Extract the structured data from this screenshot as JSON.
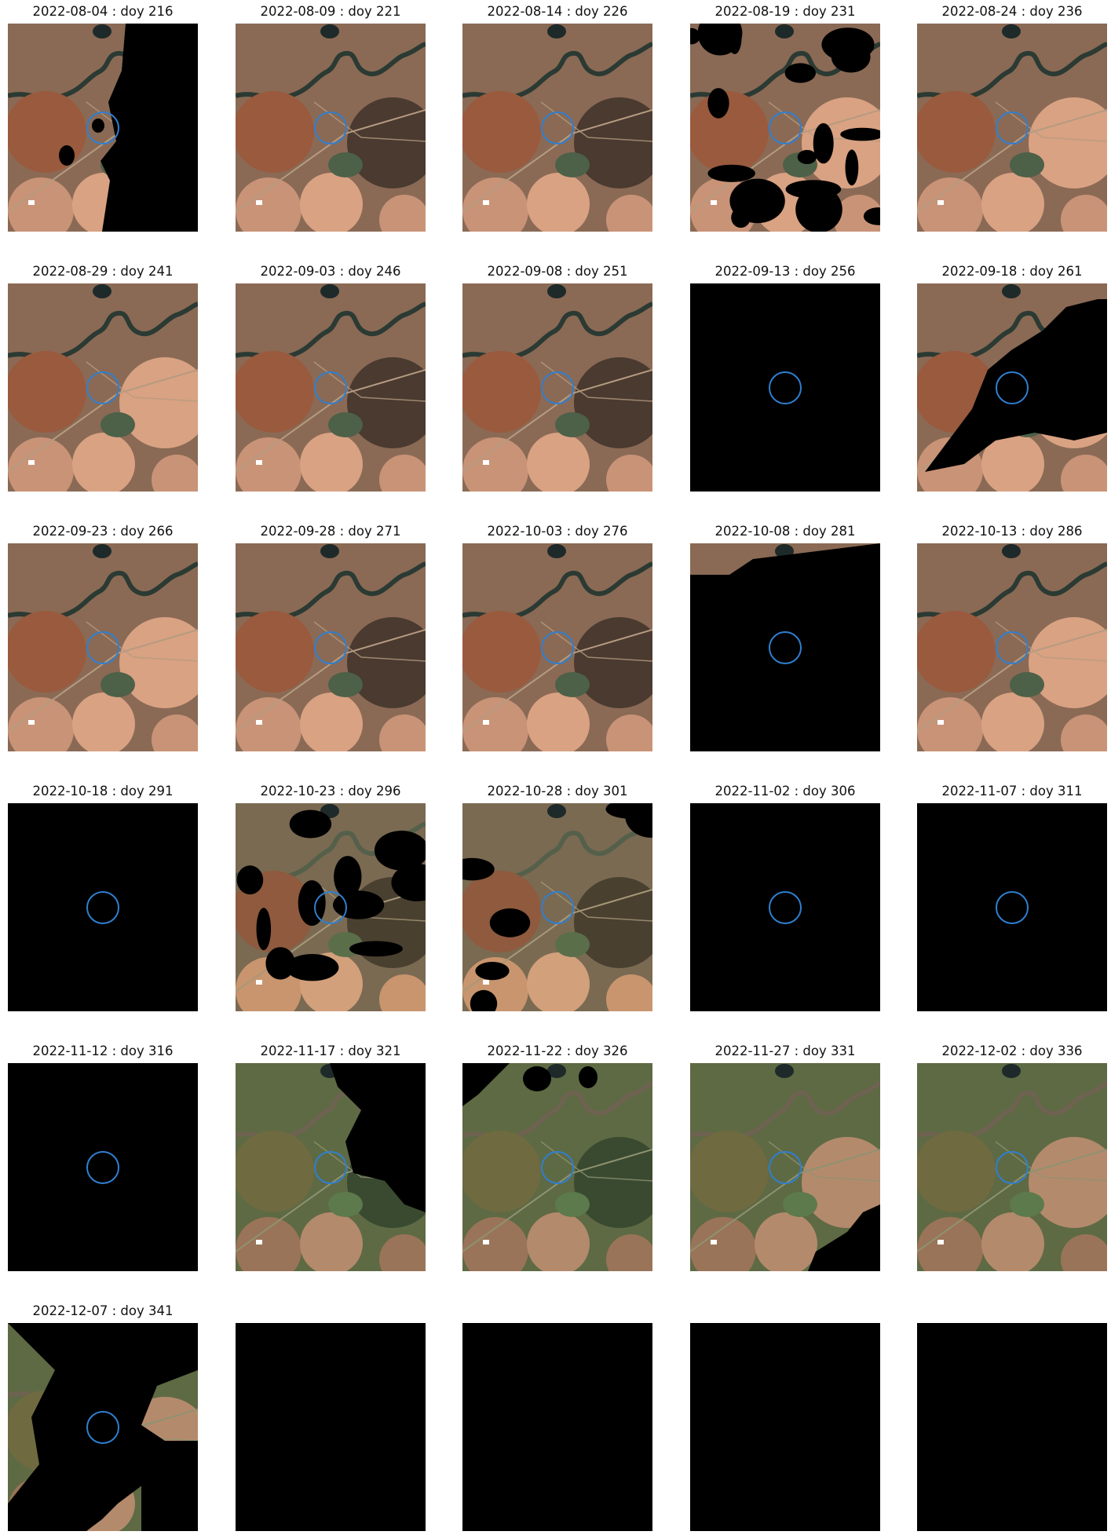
{
  "figure": {
    "type": "satellite-image-grid",
    "columns": 5,
    "rows": 6,
    "aoi_marker_color": "#2f7fd0",
    "masked_color": "#000000"
  },
  "frames": [
    {
      "label": "2022-08-04 : doy 216",
      "date": "2022-08-04",
      "doy": 216,
      "palette": "dry",
      "cloud": 0.35,
      "mask_side": "right"
    },
    {
      "label": "2022-08-09 : doy 221",
      "date": "2022-08-09",
      "doy": 221,
      "palette": "dry",
      "cloud": 0.0
    },
    {
      "label": "2022-08-14 : doy 226",
      "date": "2022-08-14",
      "doy": 226,
      "palette": "dry",
      "cloud": 0.0
    },
    {
      "label": "2022-08-19 : doy 231",
      "date": "2022-08-19",
      "doy": 231,
      "palette": "dry",
      "cloud": 0.45,
      "mask_side": "scatter"
    },
    {
      "label": "2022-08-24 : doy 236",
      "date": "2022-08-24",
      "doy": 236,
      "palette": "dry",
      "cloud": 0.0
    },
    {
      "label": "2022-08-29 : doy 241",
      "date": "2022-08-29",
      "doy": 241,
      "palette": "dry",
      "cloud": 0.0
    },
    {
      "label": "2022-09-03 : doy 246",
      "date": "2022-09-03",
      "doy": 246,
      "palette": "dry",
      "cloud": 0.0
    },
    {
      "label": "2022-09-08 : doy 251",
      "date": "2022-09-08",
      "doy": 251,
      "palette": "dry",
      "cloud": 0.0
    },
    {
      "label": "2022-09-13 : doy 256",
      "date": "2022-09-13",
      "doy": 256,
      "palette": "dry",
      "cloud": 1.0
    },
    {
      "label": "2022-09-18 : doy 261",
      "date": "2022-09-18",
      "doy": 261,
      "palette": "dry",
      "cloud": 0.5,
      "mask_side": "diagonal"
    },
    {
      "label": "2022-09-23 : doy 266",
      "date": "2022-09-23",
      "doy": 266,
      "palette": "dry",
      "cloud": 0.0
    },
    {
      "label": "2022-09-28 : doy 271",
      "date": "2022-09-28",
      "doy": 271,
      "palette": "dry",
      "cloud": 0.0
    },
    {
      "label": "2022-10-03 : doy 276",
      "date": "2022-10-03",
      "doy": 276,
      "palette": "dry",
      "cloud": 0.0
    },
    {
      "label": "2022-10-08 : doy 281",
      "date": "2022-10-08",
      "doy": 281,
      "palette": "dry",
      "cloud": 0.92,
      "mask_side": "mostly"
    },
    {
      "label": "2022-10-13 : doy 286",
      "date": "2022-10-13",
      "doy": 286,
      "palette": "dry",
      "cloud": 0.0
    },
    {
      "label": "2022-10-18 : doy 291",
      "date": "2022-10-18",
      "doy": 291,
      "palette": "dry",
      "cloud": 1.0
    },
    {
      "label": "2022-10-23 : doy 296",
      "date": "2022-10-23",
      "doy": 296,
      "palette": "mixed",
      "cloud": 0.3,
      "mask_side": "patches"
    },
    {
      "label": "2022-10-28 : doy 301",
      "date": "2022-10-28",
      "doy": 301,
      "palette": "mixed",
      "cloud": 0.1,
      "mask_side": "patches"
    },
    {
      "label": "2022-11-02 : doy 306",
      "date": "2022-11-02",
      "doy": 306,
      "palette": "mixed",
      "cloud": 1.0
    },
    {
      "label": "2022-11-07 : doy 311",
      "date": "2022-11-07",
      "doy": 311,
      "palette": "mixed",
      "cloud": 1.0
    },
    {
      "label": "2022-11-12 : doy 316",
      "date": "2022-11-12",
      "doy": 316,
      "palette": "green",
      "cloud": 1.0
    },
    {
      "label": "2022-11-17 : doy 321",
      "date": "2022-11-17",
      "doy": 321,
      "palette": "green",
      "cloud": 0.35,
      "mask_side": "top-right"
    },
    {
      "label": "2022-11-22 : doy 326",
      "date": "2022-11-22",
      "doy": 326,
      "palette": "green",
      "cloud": 0.08,
      "mask_side": "top-left"
    },
    {
      "label": "2022-11-27 : doy 331",
      "date": "2022-11-27",
      "doy": 331,
      "palette": "green",
      "cloud": 0.08,
      "mask_side": "bottom-right"
    },
    {
      "label": "2022-12-02 : doy 336",
      "date": "2022-12-02",
      "doy": 336,
      "palette": "green",
      "cloud": 0.0
    },
    {
      "label": "2022-12-07 : doy 341",
      "date": "2022-12-07",
      "doy": 341,
      "palette": "green",
      "cloud": 0.7,
      "mask_side": "ragged"
    },
    {
      "label": "",
      "palette": "none",
      "cloud": 1.0,
      "empty": true
    },
    {
      "label": "",
      "palette": "none",
      "cloud": 1.0,
      "empty": true
    },
    {
      "label": "",
      "palette": "none",
      "cloud": 1.0,
      "empty": true
    },
    {
      "label": "",
      "palette": "none",
      "cloud": 1.0,
      "empty": true
    }
  ]
}
